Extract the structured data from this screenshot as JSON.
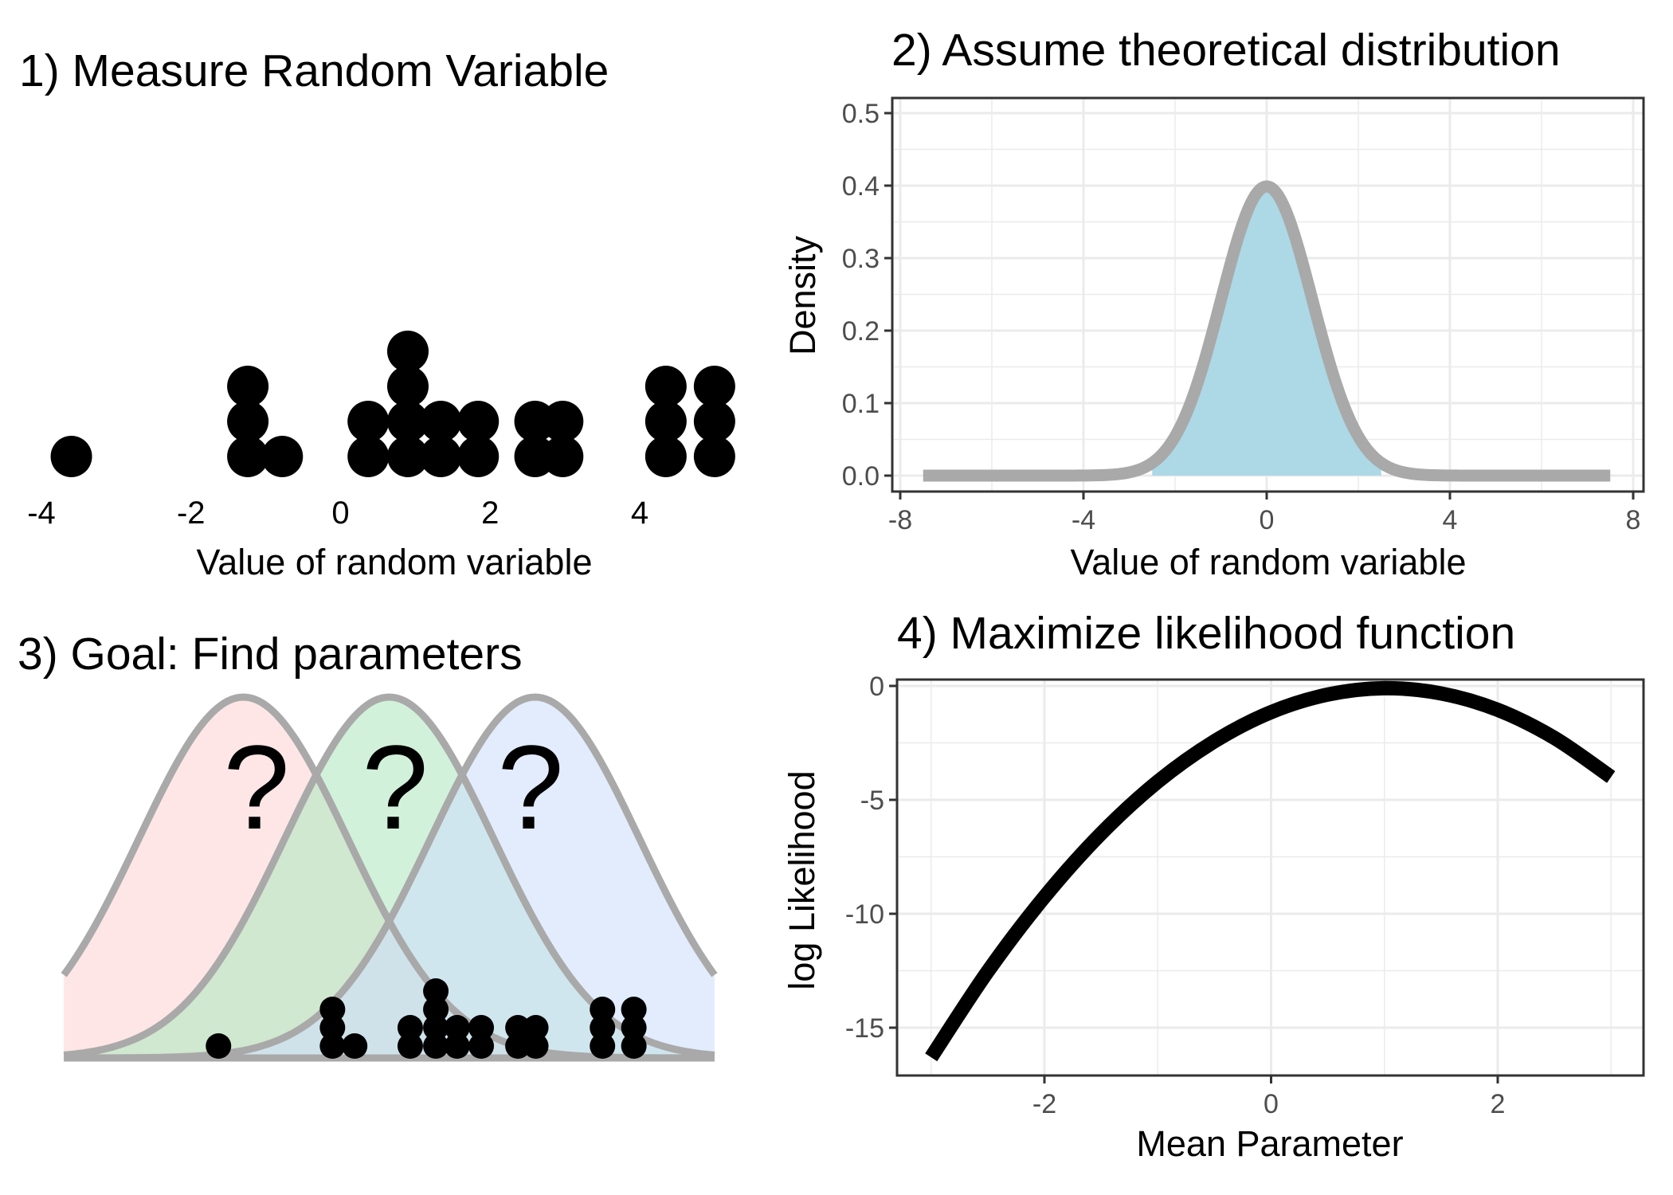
{
  "colors": {
    "dot": "#000000",
    "curve_gray": "#a9a9a9",
    "density_fill": "#add8e6",
    "dist_red": "#fbd5d3",
    "dist_green": "#b3e8c2",
    "dist_blue": "#cfdffc",
    "likelihood_line": "#000000",
    "grid": "#ebebeb",
    "panel_border": "#333333"
  },
  "chart_data": [
    {
      "type": "scatter",
      "panel": "1",
      "title": "1) Measure Random Variable",
      "xlabel": "Value of random variable",
      "ylabel": "",
      "xlim": [
        -4.4,
        5.3
      ],
      "xticks": [
        -4,
        -2,
        0,
        2,
        4
      ],
      "xtick_labels": [
        "-4",
        "-2",
        "0",
        "2",
        "4"
      ],
      "grid": false,
      "stack_rows": [
        0,
        1,
        2,
        3
      ],
      "points": [
        {
          "x": -3.6,
          "row": 0
        },
        {
          "x": -1.24,
          "row": 0
        },
        {
          "x": -1.24,
          "row": 1
        },
        {
          "x": -1.24,
          "row": 2
        },
        {
          "x": -0.78,
          "row": 0
        },
        {
          "x": 0.37,
          "row": 0
        },
        {
          "x": 0.37,
          "row": 1
        },
        {
          "x": 0.9,
          "row": 0
        },
        {
          "x": 0.9,
          "row": 1
        },
        {
          "x": 0.9,
          "row": 2
        },
        {
          "x": 0.9,
          "row": 3
        },
        {
          "x": 1.34,
          "row": 0
        },
        {
          "x": 1.34,
          "row": 1
        },
        {
          "x": 1.84,
          "row": 0
        },
        {
          "x": 1.84,
          "row": 1
        },
        {
          "x": 2.6,
          "row": 0
        },
        {
          "x": 2.6,
          "row": 1
        },
        {
          "x": 2.97,
          "row": 0
        },
        {
          "x": 2.97,
          "row": 1
        },
        {
          "x": 4.35,
          "row": 0
        },
        {
          "x": 4.35,
          "row": 1
        },
        {
          "x": 4.35,
          "row": 2
        },
        {
          "x": 5.0,
          "row": 0
        },
        {
          "x": 5.0,
          "row": 1
        },
        {
          "x": 5.0,
          "row": 2
        }
      ]
    },
    {
      "type": "area",
      "panel": "2",
      "title": "2) Assume theoretical distribution",
      "xlabel": "Value of random variable",
      "ylabel": "Density",
      "xlim": [
        -8,
        8
      ],
      "ylim": [
        0,
        0.5
      ],
      "xticks": [
        -8,
        -4,
        0,
        4,
        8
      ],
      "xtick_labels": [
        "-8",
        "-4",
        "0",
        "4",
        "8"
      ],
      "yticks": [
        0,
        0.1,
        0.2,
        0.3,
        0.4,
        0.5
      ],
      "ytick_labels": [
        "0.0",
        "0.1",
        "0.2",
        "0.3",
        "0.4",
        "0.5"
      ],
      "grid": true,
      "series": [
        {
          "distribution": "normal",
          "mean": 0,
          "sd": 1,
          "x_range": [
            -7.5,
            7.5
          ],
          "fill_range": [
            -2.5,
            2.5
          ]
        }
      ]
    },
    {
      "type": "area",
      "panel": "3",
      "title": "3) Goal: Find parameters",
      "xlabel": "",
      "ylabel": "",
      "xlim": [
        -4.4,
        5.3
      ],
      "grid": false,
      "annotations": [
        "?",
        "?",
        "?"
      ],
      "series": [
        {
          "distribution": "normal",
          "mean": -1.3,
          "sd": 1.4,
          "x_range": [
            -4.4,
            5.3
          ],
          "fill": "dist_red"
        },
        {
          "distribution": "normal",
          "mean": 0.65,
          "sd": 1.4,
          "x_range": [
            -4.4,
            5.3
          ],
          "fill": "dist_green"
        },
        {
          "distribution": "normal",
          "mean": 2.6,
          "sd": 1.4,
          "x_range": [
            -4.4,
            5.3
          ],
          "fill": "dist_blue"
        }
      ]
    },
    {
      "type": "line",
      "panel": "4",
      "title": "4) Maximize likelihood function",
      "xlabel": "Mean Parameter",
      "ylabel": "log Likelihood",
      "xlim": [
        -3.3,
        3.3
      ],
      "ylim": [
        -17,
        0
      ],
      "xticks": [
        -2,
        0,
        2
      ],
      "xtick_labels": [
        "-2",
        "0",
        "2"
      ],
      "yticks": [
        0,
        -5,
        -10,
        -15
      ],
      "ytick_labels": [
        "0",
        "-5",
        "-10",
        "-15"
      ],
      "grid": true,
      "series": [
        {
          "x": [
            -3.0,
            -2.5,
            -2.0,
            -1.5,
            -1.0,
            -0.5,
            0.0,
            0.5,
            1.0,
            1.5,
            2.0,
            2.5,
            3.0
          ],
          "y": [
            -16.3,
            -12.53,
            -9.26,
            -6.48,
            -4.2,
            -2.43,
            -1.15,
            -0.38,
            -0.1,
            -0.33,
            -1.05,
            -2.28,
            -4.0
          ]
        }
      ]
    }
  ]
}
